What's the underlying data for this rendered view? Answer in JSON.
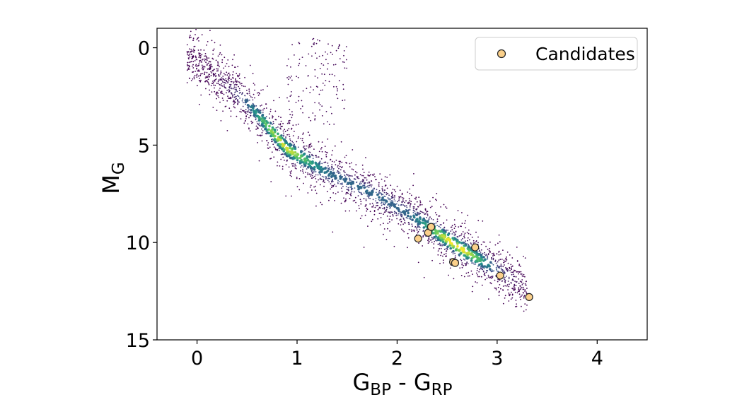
{
  "chart_data": {
    "type": "scatter",
    "xlabel": {
      "main": "G",
      "sub1": "BP",
      "sep": " - ",
      "main2": "G",
      "sub2": "RP"
    },
    "ylabel": {
      "main": "M",
      "sub": "G"
    },
    "xlim": [
      -0.4,
      4.5
    ],
    "ylim": [
      15,
      -1
    ],
    "y_inverted": true,
    "x_ticks": [
      "0",
      "1",
      "2",
      "3",
      "4"
    ],
    "y_ticks": [
      "0",
      "5",
      "10",
      "15"
    ],
    "grid": false,
    "legend_position": "top-right",
    "colors": {
      "candidate_fill": "#fbd08a",
      "candidate_edge": "#222222",
      "density_low": "#440154",
      "density_high": "#fde725"
    },
    "background_population": {
      "description_hidden": true,
      "colormap": "viridis"
    },
    "series": [
      {
        "name": "Candidates",
        "points": [
          {
            "x": 2.21,
            "y": 9.8
          },
          {
            "x": 2.31,
            "y": 9.5
          },
          {
            "x": 2.34,
            "y": 9.2
          },
          {
            "x": 2.56,
            "y": 11.0
          },
          {
            "x": 2.58,
            "y": 11.05
          },
          {
            "x": 2.78,
            "y": 10.25
          },
          {
            "x": 3.03,
            "y": 11.7
          },
          {
            "x": 3.32,
            "y": 12.8
          }
        ]
      }
    ]
  }
}
